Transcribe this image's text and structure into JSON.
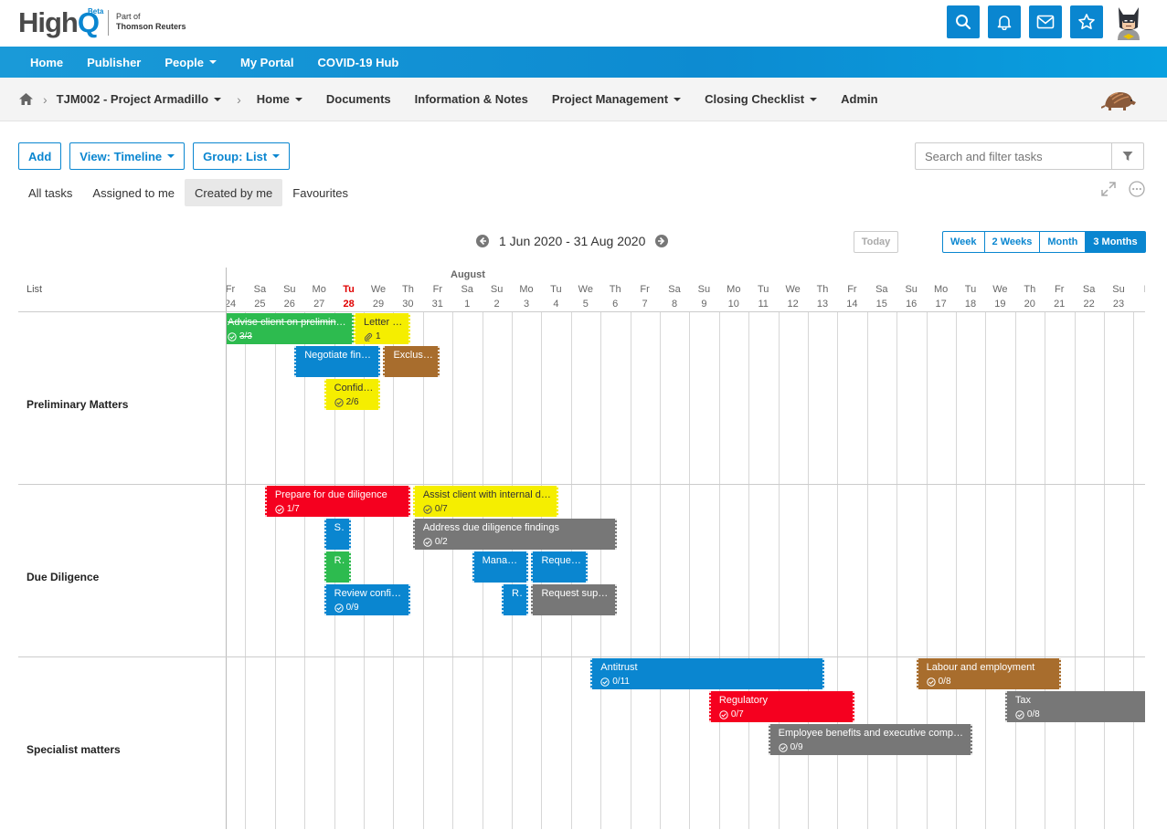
{
  "brand": {
    "name": "HighQ",
    "name_high": "High",
    "name_q": "Q",
    "badge": "Beta",
    "tagline_1": "Part of",
    "tagline_2": "Thomson Reuters"
  },
  "main_nav": [
    {
      "label": "Home",
      "dropdown": false
    },
    {
      "label": "Publisher",
      "dropdown": false
    },
    {
      "label": "People",
      "dropdown": true
    },
    {
      "label": "My Portal",
      "dropdown": false
    },
    {
      "label": "COVID-19 Hub",
      "dropdown": false
    }
  ],
  "site_nav": {
    "site": "TJM002 - Project Armadillo",
    "items": [
      {
        "label": "Home",
        "dropdown": true
      },
      {
        "label": "Documents",
        "dropdown": false
      },
      {
        "label": "Information & Notes",
        "dropdown": false
      },
      {
        "label": "Project Management",
        "dropdown": true
      },
      {
        "label": "Closing Checklist",
        "dropdown": true
      },
      {
        "label": "Admin",
        "dropdown": false
      }
    ]
  },
  "toolbar": {
    "add": "Add",
    "view": "View: Timeline",
    "group": "Group: List"
  },
  "search": {
    "placeholder": "Search and filter tasks"
  },
  "tabs": [
    {
      "label": "All tasks",
      "active": false
    },
    {
      "label": "Assigned to me",
      "active": false
    },
    {
      "label": "Created by me",
      "active": true
    },
    {
      "label": "Favourites",
      "active": false
    }
  ],
  "timeline": {
    "range": "1 Jun 2020 - 31 Aug 2020",
    "today": "Today",
    "zoom": [
      {
        "label": "Week",
        "active": false
      },
      {
        "label": "2 Weeks",
        "active": false
      },
      {
        "label": "Month",
        "active": false
      },
      {
        "label": "3 Months",
        "active": true
      }
    ],
    "list_header": "List",
    "month": "August",
    "days": [
      {
        "dow": "Fr",
        "num": "24"
      },
      {
        "dow": "Sa",
        "num": "25"
      },
      {
        "dow": "Su",
        "num": "26"
      },
      {
        "dow": "Mo",
        "num": "27"
      },
      {
        "dow": "Tu",
        "num": "28",
        "today": true
      },
      {
        "dow": "We",
        "num": "29"
      },
      {
        "dow": "Th",
        "num": "30"
      },
      {
        "dow": "Fr",
        "num": "31"
      },
      {
        "dow": "Sa",
        "num": "1"
      },
      {
        "dow": "Su",
        "num": "2"
      },
      {
        "dow": "Mo",
        "num": "3"
      },
      {
        "dow": "Tu",
        "num": "4"
      },
      {
        "dow": "We",
        "num": "5"
      },
      {
        "dow": "Th",
        "num": "6"
      },
      {
        "dow": "Fr",
        "num": "7"
      },
      {
        "dow": "Sa",
        "num": "8"
      },
      {
        "dow": "Su",
        "num": "9"
      },
      {
        "dow": "Mo",
        "num": "10"
      },
      {
        "dow": "Tu",
        "num": "11"
      },
      {
        "dow": "We",
        "num": "12"
      },
      {
        "dow": "Th",
        "num": "13"
      },
      {
        "dow": "Fr",
        "num": "14"
      },
      {
        "dow": "Sa",
        "num": "15"
      },
      {
        "dow": "Su",
        "num": "16"
      },
      {
        "dow": "Mo",
        "num": "17"
      },
      {
        "dow": "Tu",
        "num": "18"
      },
      {
        "dow": "We",
        "num": "19"
      },
      {
        "dow": "Th",
        "num": "20"
      },
      {
        "dow": "Fr",
        "num": "21"
      },
      {
        "dow": "Sa",
        "num": "22"
      },
      {
        "dow": "Su",
        "num": "23"
      },
      {
        "dow": "M",
        "num": "2"
      }
    ],
    "groups": [
      {
        "label": "Preliminary Matters",
        "tasks": [
          {
            "title": "Advise client on preliminary i...",
            "sub": "3/3",
            "icon": "check",
            "color": "#2dbb4f",
            "start": 0,
            "span": 4.6,
            "row": 0,
            "struck": true
          },
          {
            "title": "Letter of...",
            "sub": "1",
            "icon": "clip",
            "color": "#f5ee00",
            "start": 4.6,
            "span": 1.9,
            "row": 0,
            "dark": true
          },
          {
            "title": "Negotiate finan...",
            "sub": "",
            "icon": "",
            "color": "#0a86d0",
            "start": 2.6,
            "span": 2.9,
            "row": 1
          },
          {
            "title": "Exclusiv...",
            "sub": "",
            "icon": "",
            "color": "#a86d2d",
            "start": 5.6,
            "span": 1.9,
            "row": 1
          },
          {
            "title": "Confide...",
            "sub": "2/6",
            "icon": "check",
            "color": "#f5ee00",
            "start": 3.6,
            "span": 1.9,
            "row": 2,
            "dark": true
          }
        ]
      },
      {
        "label": "Due Diligence",
        "tasks": [
          {
            "title": "Prepare for due diligence",
            "sub": "1/7",
            "icon": "check",
            "color": "#f5001f",
            "start": 1.6,
            "span": 4.9,
            "row": 0
          },
          {
            "title": "Assist client with internal du...",
            "sub": "0/7",
            "icon": "check",
            "color": "#f5ee00",
            "start": 6.6,
            "span": 4.9,
            "row": 0,
            "dark": true
          },
          {
            "title": "S...",
            "sub": "",
            "icon": "",
            "color": "#0a86d0",
            "start": 3.6,
            "span": 0.9,
            "row": 1
          },
          {
            "title": "Address due diligence findings",
            "sub": "0/2",
            "icon": "check",
            "color": "#777777",
            "start": 6.6,
            "span": 6.9,
            "row": 1
          },
          {
            "title": "R...",
            "sub": "",
            "icon": "",
            "color": "#2dbb4f",
            "start": 3.6,
            "span": 0.9,
            "row": 2
          },
          {
            "title": "Manage...",
            "sub": "",
            "icon": "",
            "color": "#0a86d0",
            "start": 8.6,
            "span": 1.9,
            "row": 2
          },
          {
            "title": "Request...",
            "sub": "",
            "icon": "",
            "color": "#0a86d0",
            "start": 10.6,
            "span": 1.9,
            "row": 2
          },
          {
            "title": "Review confid...",
            "sub": "0/9",
            "icon": "check",
            "color": "#0a86d0",
            "start": 3.6,
            "span": 2.9,
            "row": 3
          },
          {
            "title": "R...",
            "sub": "",
            "icon": "",
            "color": "#0a86d0",
            "start": 9.6,
            "span": 0.9,
            "row": 3
          },
          {
            "title": "Request suppl...",
            "sub": "",
            "icon": "",
            "color": "#777777",
            "start": 10.6,
            "span": 2.9,
            "row": 3
          }
        ]
      },
      {
        "label": "Specialist matters",
        "tasks": [
          {
            "title": "Antitrust",
            "sub": "0/11",
            "icon": "check",
            "color": "#0a86d0",
            "start": 12.6,
            "span": 7.9,
            "row": 0
          },
          {
            "title": "Labour and employment",
            "sub": "0/8",
            "icon": "check",
            "color": "#a86d2d",
            "start": 23.6,
            "span": 4.9,
            "row": 0
          },
          {
            "title": "Regulatory",
            "sub": "0/7",
            "icon": "check",
            "color": "#f5001f",
            "start": 16.6,
            "span": 4.9,
            "row": 1
          },
          {
            "title": "Tax",
            "sub": "0/8",
            "icon": "check",
            "color": "#777777",
            "start": 26.6,
            "span": 5.4,
            "row": 1
          },
          {
            "title": "Employee benefits and executive compen...",
            "sub": "0/9",
            "icon": "check",
            "color": "#777777",
            "start": 18.6,
            "span": 6.9,
            "row": 2
          }
        ]
      }
    ]
  },
  "colors": {
    "accent": "#0a86d0",
    "today": "#e00000"
  }
}
